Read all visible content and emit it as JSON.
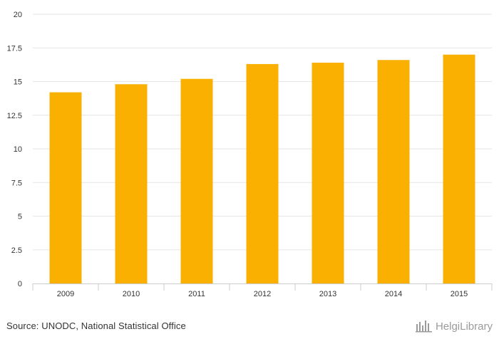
{
  "chart_data": {
    "type": "bar",
    "categories": [
      "2009",
      "2010",
      "2011",
      "2012",
      "2013",
      "2014",
      "2015"
    ],
    "values": [
      14.2,
      14.8,
      15.2,
      16.3,
      16.4,
      16.6,
      17.0
    ],
    "title": "",
    "xlabel": "",
    "ylabel": "",
    "ylim": [
      0,
      20
    ],
    "yticks": [
      "0",
      "2.5",
      "5",
      "7.5",
      "10",
      "12.5",
      "15",
      "17.5",
      "20"
    ],
    "grid": "horizontal",
    "legend": "none"
  },
  "colors": {
    "bar": "#f9b000",
    "grid": "#e6e6e6",
    "axis": "#cccccc",
    "brand_text": "#9b9b9b"
  },
  "footer": {
    "source": "Source: UNODC, National Statistical Office",
    "brand": "HelgiLibrary",
    "brand_icon": "helgi-logo-icon"
  }
}
